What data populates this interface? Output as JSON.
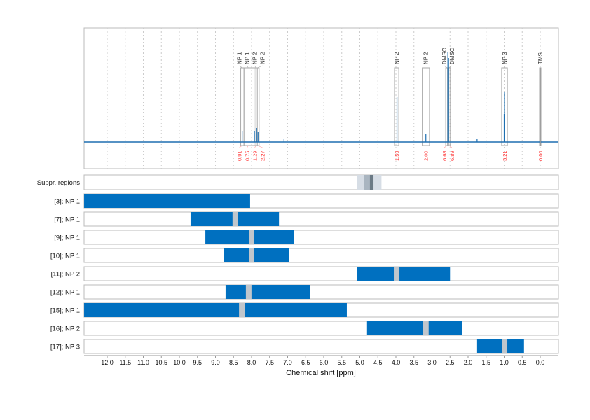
{
  "chart_data": {
    "type": "line",
    "xlabel": "Chemical shift [ppm]",
    "xlim": [
      12.64,
      -0.5
    ],
    "x_reversed": true,
    "grid": true,
    "x_ticks": [
      "12.0",
      "11.5",
      "11.0",
      "10.5",
      "10.0",
      "9.5",
      "9.0",
      "8.5",
      "8.0",
      "7.5",
      "7.0",
      "6.5",
      "6.0",
      "5.5",
      "5.0",
      "4.5",
      "4.0",
      "3.5",
      "3.0",
      "2.5",
      "2.0",
      "1.5",
      "1.0",
      "0.5",
      "0.0"
    ],
    "spectrum_peaks": [
      {
        "ppm": 8.26,
        "height": 0.08
      },
      {
        "ppm": 7.92,
        "height": 0.08
      },
      {
        "ppm": 7.86,
        "height": 0.1
      },
      {
        "ppm": 7.82,
        "height": 0.07
      },
      {
        "ppm": 7.1,
        "height": 0.02
      },
      {
        "ppm": 3.97,
        "height": 0.32
      },
      {
        "ppm": 3.17,
        "height": 0.06
      },
      {
        "ppm": 2.56,
        "height": 0.64
      },
      {
        "ppm": 2.54,
        "height": 0.6
      },
      {
        "ppm": 1.75,
        "height": 0.02
      },
      {
        "ppm": 1.0,
        "height": 0.2
      },
      {
        "ppm": 0.99,
        "height": 0.36
      },
      {
        "ppm": 0.0,
        "height": 0.0
      }
    ],
    "annotations": [
      {
        "label": "NP 1",
        "ppm": 8.26,
        "from": 8.3,
        "to": 8.21,
        "integral": "0.91"
      },
      {
        "label": "NP 1",
        "ppm": 8.09,
        "from": 8.21,
        "to": 7.93,
        "integral": "0.75"
      },
      {
        "label": "NP 2",
        "ppm": 7.88,
        "from": 7.93,
        "to": 7.84,
        "integral": "1.29"
      },
      {
        "label": "NP 2",
        "ppm": 7.84,
        "from": 7.88,
        "to": 7.79,
        "integral": "2.27"
      },
      {
        "label": "NP 2",
        "ppm": 3.98,
        "from": 4.04,
        "to": 3.92,
        "integral": "1.59"
      },
      {
        "label": "NP 2",
        "ppm": 3.17,
        "from": 3.27,
        "to": 3.07,
        "integral": "2.00"
      },
      {
        "label": "DMSO",
        "ppm": 2.58,
        "from": 2.62,
        "to": 2.53,
        "integral": "6.68"
      },
      {
        "label": "DMSO",
        "ppm": 2.53,
        "from": 2.57,
        "to": 2.49,
        "integral": "6.89"
      },
      {
        "label": "NP 3",
        "ppm": 0.99,
        "from": 1.07,
        "to": 0.91,
        "integral": "3.21"
      },
      {
        "label": "TMS",
        "ppm": 0.0,
        "from": 0.02,
        "to": -0.02,
        "integral": "0.00"
      }
    ],
    "rows": [
      {
        "label": "Suppr. regions",
        "type": "suppression",
        "from": 5.07,
        "to": 4.4,
        "core_from": 4.88,
        "core_to": 4.62
      },
      {
        "label": "[3]; NP 1",
        "from": 12.64,
        "to": 8.04,
        "mark": null
      },
      {
        "label": "[7]; NP 1",
        "from": 9.69,
        "to": 7.24,
        "mark": 8.45
      },
      {
        "label": "[9]; NP 1",
        "from": 9.28,
        "to": 6.82,
        "mark": 8.0
      },
      {
        "label": "[10]; NP 1",
        "from": 8.76,
        "to": 6.97,
        "mark": 8.0
      },
      {
        "label": "[11]; NP 2",
        "from": 5.07,
        "to": 2.5,
        "mark": 3.98
      },
      {
        "label": "[12]; NP 1",
        "from": 8.72,
        "to": 6.37,
        "mark": 8.08
      },
      {
        "label": "[15]; NP 1",
        "from": 12.64,
        "to": 5.36,
        "mark": 8.27
      },
      {
        "label": "[16]; NP 2",
        "from": 4.8,
        "to": 2.17,
        "mark": 3.17
      },
      {
        "label": "[17]; NP 3",
        "from": 1.75,
        "to": 0.45,
        "mark": 0.99
      }
    ],
    "colors": {
      "spectrum": "#1f6fb0",
      "bar": "#0070c0",
      "mark": "#c0c6cc",
      "integral": "#ff3333",
      "supp_light": "#d6dde5",
      "supp_dark": "#6b7a85"
    }
  }
}
